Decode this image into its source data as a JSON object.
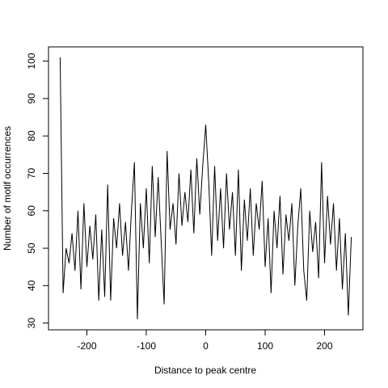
{
  "chart_data": {
    "type": "line",
    "x_label": "Distance to peak centre",
    "y_label": "Number of motif occurrences",
    "x": [
      -245,
      -240,
      -235,
      -230,
      -225,
      -220,
      -215,
      -210,
      -205,
      -200,
      -195,
      -190,
      -185,
      -180,
      -175,
      -170,
      -165,
      -160,
      -155,
      -150,
      -145,
      -140,
      -135,
      -130,
      -125,
      -120,
      -115,
      -110,
      -105,
      -100,
      -95,
      -90,
      -85,
      -80,
      -75,
      -70,
      -65,
      -60,
      -55,
      -50,
      -45,
      -40,
      -35,
      -30,
      -25,
      -20,
      -15,
      -10,
      -5,
      0,
      5,
      10,
      15,
      20,
      25,
      30,
      35,
      40,
      45,
      50,
      55,
      60,
      65,
      70,
      75,
      80,
      85,
      90,
      95,
      100,
      105,
      110,
      115,
      120,
      125,
      130,
      135,
      140,
      145,
      150,
      155,
      160,
      165,
      170,
      175,
      180,
      185,
      190,
      195,
      200,
      205,
      210,
      215,
      220,
      225,
      230,
      235,
      240,
      245
    ],
    "values": [
      101,
      38,
      50,
      46,
      54,
      44,
      60,
      39,
      62,
      45,
      56,
      47,
      59,
      36,
      55,
      37,
      67,
      36,
      58,
      50,
      62,
      48,
      57,
      44,
      60,
      73,
      31,
      62,
      50,
      66,
      46,
      72,
      53,
      69,
      52,
      35,
      76,
      55,
      62,
      51,
      70,
      56,
      65,
      57,
      71,
      54,
      74,
      59,
      72,
      83,
      68,
      48,
      72,
      52,
      66,
      50,
      70,
      55,
      65,
      48,
      71,
      44,
      63,
      52,
      66,
      48,
      62,
      55,
      68,
      45,
      58,
      38,
      60,
      50,
      64,
      43,
      59,
      52,
      62,
      40,
      56,
      66,
      44,
      36,
      60,
      49,
      57,
      42,
      73,
      46,
      64,
      51,
      62,
      44,
      58,
      39,
      54,
      32,
      53
    ],
    "color": "#000000",
    "xlim": [
      -264.6,
      264.6
    ],
    "ylim": [
      28.2,
      103.8
    ],
    "xticks": [
      -200,
      -100,
      0,
      100,
      200
    ],
    "yticks": [
      30,
      40,
      50,
      60,
      70,
      80,
      90,
      100
    ]
  }
}
